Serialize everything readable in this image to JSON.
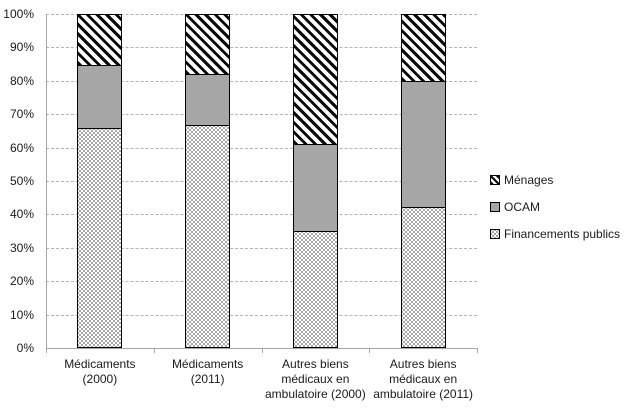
{
  "colors": {
    "background": "#ffffff",
    "bar_border": "#000000",
    "ocam_fill": "#a6a6a6",
    "dot_pattern": "#8f8f8f",
    "hatch_pattern": "#0a0a0a",
    "gridline": "#b3b3b3",
    "axis_line": "#a6a6a6",
    "text": "#1a1a1a"
  },
  "chart_data": {
    "type": "bar",
    "stacked": true,
    "percent": true,
    "title": "",
    "xlabel": "",
    "ylabel": "",
    "ylim": [
      0,
      100
    ],
    "ytick_step": 10,
    "ytick_labels": [
      "0%",
      "10%",
      "20%",
      "30%",
      "40%",
      "50%",
      "60%",
      "70%",
      "80%",
      "90%",
      "100%"
    ],
    "grid": "horizontal-dashed",
    "legend_position": "right",
    "categories": [
      "Médicaments (2000)",
      "Médicaments (2011)",
      "Autres biens médicaux en ambulatoire (2000)",
      "Autres biens médicaux en ambulatoire (2011)"
    ],
    "series": [
      {
        "name": "Financements publics",
        "pattern": "dots",
        "values": [
          66,
          67,
          35,
          42
        ]
      },
      {
        "name": "OCAM",
        "pattern": "gray",
        "values": [
          19,
          15,
          26,
          38
        ]
      },
      {
        "name": "Ménages",
        "pattern": "hatch",
        "values": [
          15,
          18,
          39,
          20
        ]
      }
    ],
    "legend": [
      {
        "label": "Ménages",
        "pattern": "hatch"
      },
      {
        "label": "OCAM",
        "pattern": "gray"
      },
      {
        "label": "Financements publics",
        "pattern": "dots"
      }
    ]
  }
}
